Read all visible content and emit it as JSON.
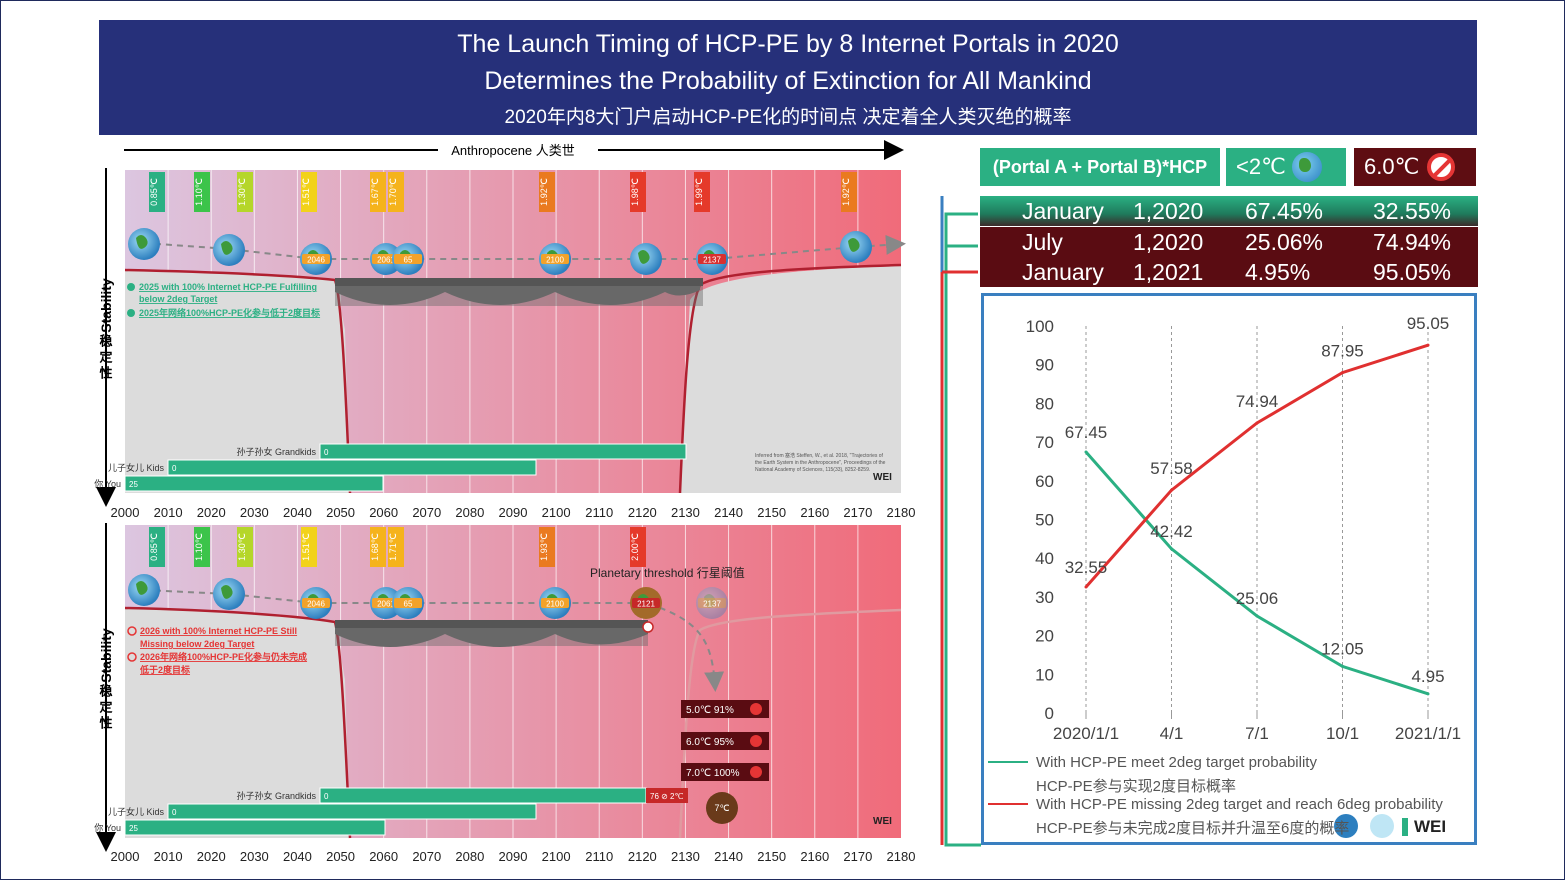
{
  "banner": {
    "title_line1": "The Launch Timing of HCP-PE by 8 Internet Portals in 2020",
    "title_line2": "Determines the Probability of Extinction for All Mankind",
    "subtitle_cn": "2020年内8大门户启动HCP-PE化的时间点 决定着全人类灭绝的概率"
  },
  "timeline": {
    "arrow_label": "Anthropocene 人类世",
    "stability_label": "Stability",
    "stability_cn": [
      "稳",
      "定",
      "性"
    ],
    "years": [
      "2000",
      "2010",
      "2020",
      "2030",
      "2040",
      "2050",
      "2060",
      "2070",
      "2080",
      "2090",
      "2100",
      "2110",
      "2120",
      "2130",
      "2140",
      "2150",
      "2160",
      "2170",
      "2180"
    ]
  },
  "panel_top": {
    "temps": [
      {
        "label": "0.85℃",
        "color": "#2bb083"
      },
      {
        "label": "1.10℃",
        "color": "#3cc44a"
      },
      {
        "label": "1.30℃",
        "color": "#b5d62a"
      },
      {
        "label": "1.51℃",
        "color": "#f2d21a"
      },
      {
        "label": "1.67℃",
        "color": "#f5b31c"
      },
      {
        "label": "1.70℃",
        "color": "#f5b31c"
      },
      {
        "label": "1.92℃",
        "color": "#ea7a20"
      },
      {
        "label": "1.98℃",
        "color": "#e53a2a"
      },
      {
        "label": "1.99℃",
        "color": "#e53a2a"
      },
      {
        "label": "1.92℃",
        "color": "#ea7a20"
      }
    ],
    "globe_labels": [
      "2046",
      "2061",
      "65",
      "2100",
      "2137"
    ],
    "note_en": "2025 with 100% Internet HCP-PE  Fulfilling below 2deg Target",
    "note_cn": "2025年网络100%HCP-PE化参与低于2度目标",
    "bars": [
      {
        "label": "孙子孙女 Grandkids",
        "value": "0"
      },
      {
        "label": "儿子女儿 Kids",
        "value": "0"
      },
      {
        "label": "你 You",
        "value": "25"
      }
    ],
    "credit": "Inferred from 塞浩 Steffen, W., et al. 2018, \"Trajectories of the Earth System in the Anthropocene\", Proceedings of the National Academy of Sciences, 115(33), 8252-8259.",
    "logo": "WEI"
  },
  "panel_bottom": {
    "temps": [
      {
        "label": "0.85℃",
        "color": "#2bb083"
      },
      {
        "label": "1.10℃",
        "color": "#3cc44a"
      },
      {
        "label": "1.30℃",
        "color": "#b5d62a"
      },
      {
        "label": "1.51℃",
        "color": "#f2d21a"
      },
      {
        "label": "1.68℃",
        "color": "#f5b31c"
      },
      {
        "label": "1.71℃",
        "color": "#f5b31c"
      },
      {
        "label": "1.93℃",
        "color": "#ea7a20"
      },
      {
        "label": "2.00℃",
        "color": "#e53a2a"
      }
    ],
    "globe_labels": [
      "2046",
      "2061",
      "65",
      "2100",
      "2121",
      "2137"
    ],
    "threshold": "Planetary threshold 行星阈值",
    "note_en_1": "2026 with 100% Internet HCP-PE  Still",
    "note_en_2": "Missing  below 2deg Target",
    "note_cn_1": "2026年网络100%HCP-PE化参与仍未完成",
    "note_cn_2": "低于2度目标",
    "outcomes": [
      "5.0℃  91%",
      "6.0℃  95%",
      "7.0℃  100%"
    ],
    "seven_c": "7℃",
    "end_tag": "76 ⊘ 2℃",
    "bars": [
      {
        "label": "孙子孙女 Grandkids",
        "value": "0"
      },
      {
        "label": "儿子女儿 Kids",
        "value": "0"
      },
      {
        "label": "你 You",
        "value": "25"
      }
    ],
    "logo": "WEI"
  },
  "table": {
    "header_formula": "(Portal A + Portal B)*HCP",
    "header_low": "<2℃",
    "header_high": "6.0℃",
    "rows": [
      {
        "month": "January",
        "date": "1,2020",
        "p2": "67.45%",
        "p6": "32.55%"
      },
      {
        "month": "July",
        "date": "1,2020",
        "p2": "25.06%",
        "p6": "74.94%"
      },
      {
        "month": "January",
        "date": "1,2021",
        "p2": "4.95%",
        "p6": "95.05%"
      }
    ]
  },
  "chart_data": {
    "type": "line",
    "x": [
      "2020/1/1",
      "4/1",
      "7/1",
      "10/1",
      "2021/1/1"
    ],
    "ylim": [
      0,
      100
    ],
    "yticks": [
      "0",
      "10",
      "20",
      "30",
      "40",
      "50",
      "60",
      "70",
      "80",
      "90",
      "100"
    ],
    "series": [
      {
        "name": "With HCP-PE meet 2deg target probability",
        "name_cn": "HCP-PE参与实现2度目标概率",
        "color": "#2bb083",
        "values": [
          67.45,
          42.42,
          25.06,
          12.05,
          4.95
        ],
        "labels": [
          "67.45",
          "42.42",
          "25.06",
          "12.05",
          "4.95"
        ]
      },
      {
        "name": "With HCP-PE missing 2deg target and reach 6deg probability",
        "name_cn": "HCP-PE参与未完成2度目标并升温至6度的概率",
        "color": "#e03030",
        "values": [
          32.55,
          57.58,
          74.94,
          87.95,
          95.05
        ],
        "labels": [
          "32.55",
          "57.58",
          "74.94",
          "87.95",
          "95.05"
        ]
      }
    ],
    "legend_logo": "WEI"
  }
}
